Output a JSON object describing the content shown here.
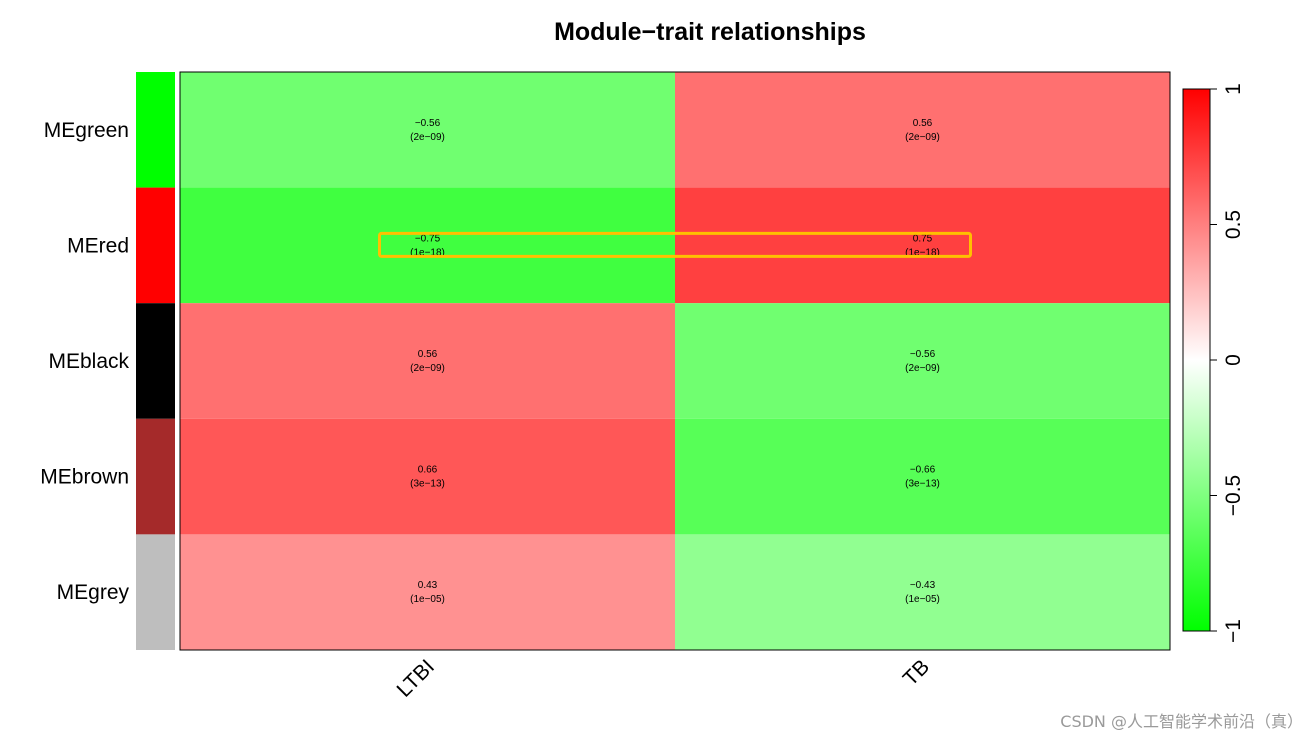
{
  "chart_data": {
    "type": "heatmap",
    "title": "Module−trait relationships",
    "rows": [
      "MEgreen",
      "MEred",
      "MEblack",
      "MEbrown",
      "MEgrey"
    ],
    "row_colors": [
      "#00ff00",
      "#ff0000",
      "#000000",
      "#a52a2a",
      "#bebebe"
    ],
    "columns": [
      "LTBI",
      "TB"
    ],
    "values": [
      [
        -0.56,
        0.56
      ],
      [
        -0.75,
        0.75
      ],
      [
        0.56,
        -0.56
      ],
      [
        0.66,
        -0.66
      ],
      [
        0.43,
        -0.43
      ]
    ],
    "cell_labels": [
      [
        "−0.56",
        "0.56"
      ],
      [
        "−0.75",
        "0.75"
      ],
      [
        "0.56",
        "−0.56"
      ],
      [
        "0.66",
        "−0.66"
      ],
      [
        "0.43",
        "−0.43"
      ]
    ],
    "p_values": [
      [
        "(2e−09)",
        "(2e−09)"
      ],
      [
        "(1e−18)",
        "(1e−18)"
      ],
      [
        "(2e−09)",
        "(2e−09)"
      ],
      [
        "(3e−13)",
        "(3e−13)"
      ],
      [
        "(1e−05)",
        "(1e−05)"
      ]
    ],
    "zlim": [
      -1,
      1
    ],
    "colorbar_ticks": [
      1,
      0.5,
      0,
      -0.5,
      -1
    ],
    "colorbar_tick_labels": [
      "1",
      "0.5",
      "0",
      "−0.5",
      "−1"
    ],
    "colors": {
      "low": "#00ff00",
      "mid": "#ffffff",
      "high": "#ff0000",
      "highlight": "#ffc000"
    },
    "highlight_row": 1
  },
  "watermark": "CSDN @人工智能学术前沿（真）"
}
